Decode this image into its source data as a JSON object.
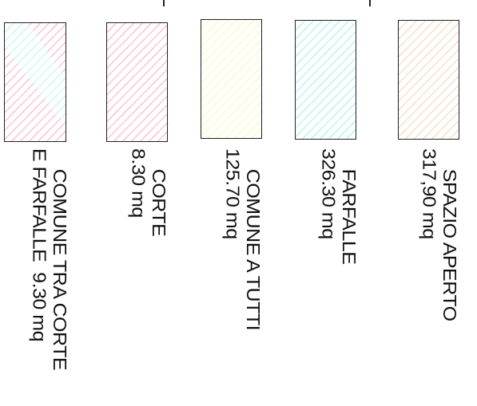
{
  "legend": {
    "items": [
      {
        "line1": "COMUNE TRA CORTE",
        "line2": "E FARFALLE  9.30 mq",
        "color": "#ff6aa0",
        "color2": "#7ff0ee",
        "pattern": "mixed"
      },
      {
        "line1": "CORTE",
        "line2": "8.30 mq",
        "color": "#ff6aa0",
        "pattern": "hatch"
      },
      {
        "line1": "COMUNE A TUTTI",
        "line2": "125.70 mq",
        "color": "#f7f36a",
        "pattern": "hatch"
      },
      {
        "line1": "FARFALLE",
        "line2": "326.30 mq",
        "color": "#55e6ec",
        "pattern": "hatch"
      },
      {
        "line1": "SPAZIO APERTO",
        "line2": "317,90 mq",
        "color": "#f7b07a",
        "pattern": "hatch"
      }
    ]
  }
}
